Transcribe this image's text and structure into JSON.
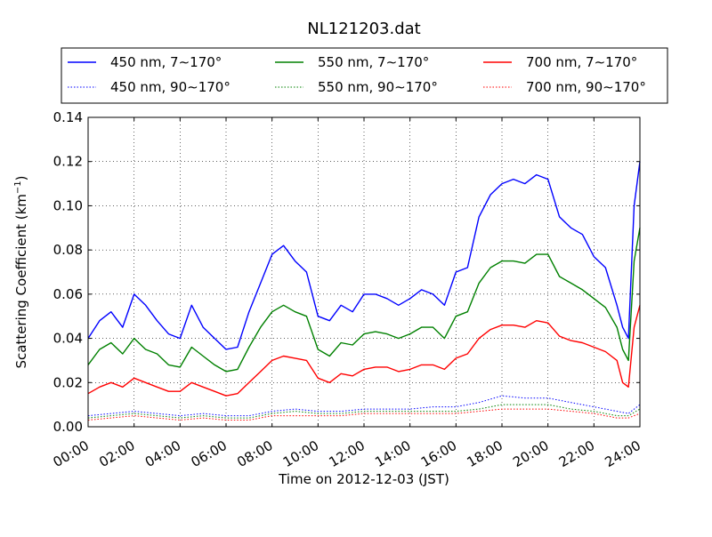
{
  "chart_data": {
    "type": "line",
    "title": "NL121203.dat",
    "xlabel": "Time on 2012-12-03 (JST)",
    "ylabel_main": "Scattering Coefficient (km",
    "ylabel_sup": "−1",
    "ylabel_tail": ")",
    "xlim": [
      "00:00",
      "24:00"
    ],
    "ylim": [
      0.0,
      0.14
    ],
    "x_ticks": [
      "00:00",
      "02:00",
      "04:00",
      "06:00",
      "08:00",
      "10:00",
      "12:00",
      "14:00",
      "16:00",
      "18:00",
      "20:00",
      "22:00",
      "24:00"
    ],
    "y_ticks": [
      "0.00",
      "0.02",
      "0.04",
      "0.06",
      "0.08",
      "0.10",
      "0.12",
      "0.14"
    ],
    "grid": true,
    "legend_position": "top (above plot)",
    "series": [
      {
        "name": "450 nm, 7∼170°",
        "color": "#0000ff",
        "style": "solid",
        "x_hours": [
          0,
          0.5,
          1,
          1.5,
          2,
          2.5,
          3,
          3.5,
          4,
          4.5,
          5,
          5.5,
          6,
          6.5,
          7,
          7.5,
          8,
          8.5,
          9,
          9.5,
          10,
          10.5,
          11,
          11.5,
          12,
          12.5,
          13,
          13.5,
          14,
          14.5,
          15,
          15.5,
          16,
          16.5,
          17,
          17.5,
          18,
          18.5,
          19,
          19.5,
          20,
          20.5,
          21,
          21.5,
          22,
          22.5,
          23,
          23.25,
          23.5,
          23.75,
          24
        ],
        "values": [
          0.04,
          0.048,
          0.052,
          0.045,
          0.06,
          0.055,
          0.048,
          0.042,
          0.04,
          0.055,
          0.045,
          0.04,
          0.035,
          0.036,
          0.052,
          0.065,
          0.078,
          0.082,
          0.075,
          0.07,
          0.05,
          0.048,
          0.055,
          0.052,
          0.06,
          0.06,
          0.058,
          0.055,
          0.058,
          0.062,
          0.06,
          0.055,
          0.07,
          0.072,
          0.095,
          0.105,
          0.11,
          0.112,
          0.11,
          0.114,
          0.112,
          0.095,
          0.09,
          0.087,
          0.077,
          0.072,
          0.055,
          0.045,
          0.04,
          0.1,
          0.12
        ]
      },
      {
        "name": "550 nm, 7∼170°",
        "color": "#008000",
        "style": "solid",
        "x_hours": [
          0,
          0.5,
          1,
          1.5,
          2,
          2.5,
          3,
          3.5,
          4,
          4.5,
          5,
          5.5,
          6,
          6.5,
          7,
          7.5,
          8,
          8.5,
          9,
          9.5,
          10,
          10.5,
          11,
          11.5,
          12,
          12.5,
          13,
          13.5,
          14,
          14.5,
          15,
          15.5,
          16,
          16.5,
          17,
          17.5,
          18,
          18.5,
          19,
          19.5,
          20,
          20.5,
          21,
          21.5,
          22,
          22.5,
          23,
          23.25,
          23.5,
          23.75,
          24
        ],
        "values": [
          0.028,
          0.035,
          0.038,
          0.033,
          0.04,
          0.035,
          0.033,
          0.028,
          0.027,
          0.036,
          0.032,
          0.028,
          0.025,
          0.026,
          0.036,
          0.045,
          0.052,
          0.055,
          0.052,
          0.05,
          0.035,
          0.032,
          0.038,
          0.037,
          0.042,
          0.043,
          0.042,
          0.04,
          0.042,
          0.045,
          0.045,
          0.04,
          0.05,
          0.052,
          0.065,
          0.072,
          0.075,
          0.075,
          0.074,
          0.078,
          0.078,
          0.068,
          0.065,
          0.062,
          0.058,
          0.054,
          0.045,
          0.035,
          0.03,
          0.075,
          0.09
        ]
      },
      {
        "name": "700 nm, 7∼170°",
        "color": "#ff0000",
        "style": "solid",
        "x_hours": [
          0,
          0.5,
          1,
          1.5,
          2,
          2.5,
          3,
          3.5,
          4,
          4.5,
          5,
          5.5,
          6,
          6.5,
          7,
          7.5,
          8,
          8.5,
          9,
          9.5,
          10,
          10.5,
          11,
          11.5,
          12,
          12.5,
          13,
          13.5,
          14,
          14.5,
          15,
          15.5,
          16,
          16.5,
          17,
          17.5,
          18,
          18.5,
          19,
          19.5,
          20,
          20.5,
          21,
          21.5,
          22,
          22.5,
          23,
          23.25,
          23.5,
          23.75,
          24
        ],
        "values": [
          0.015,
          0.018,
          0.02,
          0.018,
          0.022,
          0.02,
          0.018,
          0.016,
          0.016,
          0.02,
          0.018,
          0.016,
          0.014,
          0.015,
          0.02,
          0.025,
          0.03,
          0.032,
          0.031,
          0.03,
          0.022,
          0.02,
          0.024,
          0.023,
          0.026,
          0.027,
          0.027,
          0.025,
          0.026,
          0.028,
          0.028,
          0.026,
          0.031,
          0.033,
          0.04,
          0.044,
          0.046,
          0.046,
          0.045,
          0.048,
          0.047,
          0.041,
          0.039,
          0.038,
          0.036,
          0.034,
          0.03,
          0.02,
          0.018,
          0.045,
          0.055
        ]
      },
      {
        "name": "450 nm, 90∼170°",
        "color": "#0000ff",
        "style": "dotted",
        "x_hours": [
          0,
          1,
          2,
          3,
          4,
          5,
          6,
          7,
          8,
          9,
          10,
          11,
          12,
          13,
          14,
          15,
          16,
          17,
          18,
          19,
          20,
          21,
          22,
          23,
          23.5,
          24
        ],
        "values": [
          0.005,
          0.006,
          0.007,
          0.006,
          0.005,
          0.006,
          0.005,
          0.005,
          0.007,
          0.008,
          0.007,
          0.007,
          0.008,
          0.008,
          0.008,
          0.009,
          0.009,
          0.011,
          0.014,
          0.013,
          0.013,
          0.011,
          0.009,
          0.007,
          0.006,
          0.01
        ]
      },
      {
        "name": "550 nm, 90∼170°",
        "color": "#008000",
        "style": "dotted",
        "x_hours": [
          0,
          1,
          2,
          3,
          4,
          5,
          6,
          7,
          8,
          9,
          10,
          11,
          12,
          13,
          14,
          15,
          16,
          17,
          18,
          19,
          20,
          21,
          22,
          23,
          23.5,
          24
        ],
        "values": [
          0.004,
          0.005,
          0.006,
          0.005,
          0.004,
          0.005,
          0.004,
          0.004,
          0.006,
          0.007,
          0.006,
          0.006,
          0.007,
          0.007,
          0.007,
          0.007,
          0.007,
          0.008,
          0.01,
          0.01,
          0.01,
          0.008,
          0.007,
          0.005,
          0.005,
          0.008
        ]
      },
      {
        "name": "700 nm, 90∼170°",
        "color": "#ff0000",
        "style": "dotted",
        "x_hours": [
          0,
          1,
          2,
          3,
          4,
          5,
          6,
          7,
          8,
          9,
          10,
          11,
          12,
          13,
          14,
          15,
          16,
          17,
          18,
          19,
          20,
          21,
          22,
          23,
          23.5,
          24
        ],
        "values": [
          0.003,
          0.004,
          0.005,
          0.004,
          0.003,
          0.004,
          0.003,
          0.003,
          0.005,
          0.005,
          0.005,
          0.005,
          0.006,
          0.006,
          0.006,
          0.006,
          0.006,
          0.007,
          0.008,
          0.008,
          0.008,
          0.007,
          0.006,
          0.004,
          0.004,
          0.006
        ]
      }
    ]
  }
}
